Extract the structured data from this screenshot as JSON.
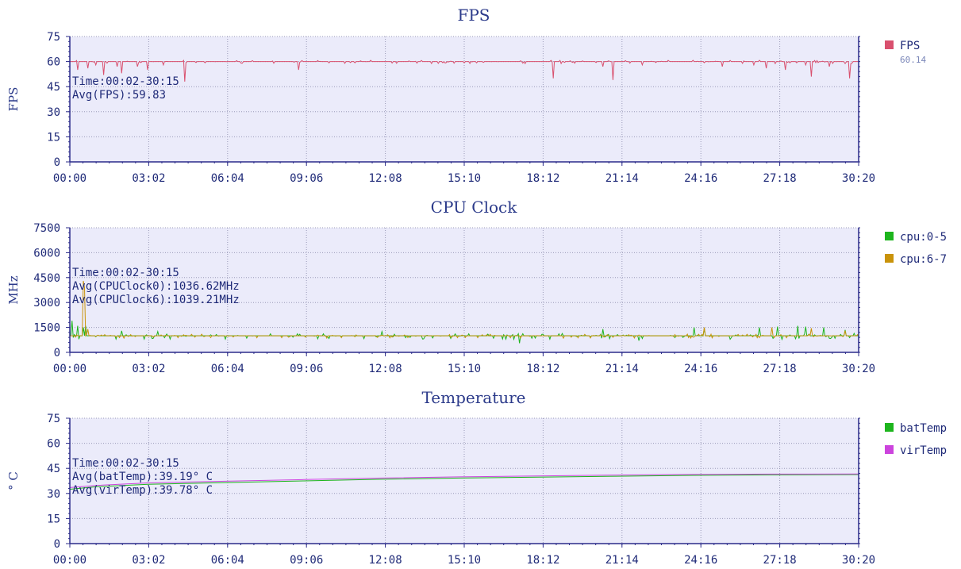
{
  "colors": {
    "plot_bg": "#ebebfa",
    "axis": "#2b2b8a",
    "grid": "#9a9ab8",
    "text": "#1f2a78",
    "title": "#2b3a8a"
  },
  "x_ticks": [
    "00:00",
    "03:02",
    "06:04",
    "09:06",
    "12:08",
    "15:10",
    "18:12",
    "21:14",
    "24:16",
    "27:18",
    "30:20"
  ],
  "chart_data": [
    {
      "type": "line",
      "title": "FPS",
      "ylabel": "FPS",
      "xlabel": "",
      "xlim": [
        0,
        30.333
      ],
      "ylim": [
        0,
        75
      ],
      "yticks": [
        0,
        15,
        30,
        45,
        60,
        75
      ],
      "grid": true,
      "legend_position": "right",
      "annotations": [
        "Time:00:02-30:15",
        "Avg(FPS):59.83"
      ],
      "series": [
        {
          "name": "FPS",
          "legend_value": "60.14",
          "color": "#d9506e",
          "baseline": 60,
          "noise": 1.0,
          "dips": [
            [
              0.3,
              55
            ],
            [
              0.7,
              56
            ],
            [
              1.0,
              58
            ],
            [
              1.3,
              52
            ],
            [
              1.8,
              57
            ],
            [
              2.0,
              53
            ],
            [
              2.6,
              57
            ],
            [
              3.0,
              55
            ],
            [
              3.6,
              58
            ],
            [
              4.4,
              48
            ],
            [
              8.8,
              55
            ],
            [
              18.6,
              50
            ],
            [
              20.5,
              57
            ],
            [
              20.9,
              49
            ],
            [
              22.0,
              58
            ],
            [
              25.1,
              57
            ],
            [
              26.3,
              58
            ],
            [
              26.8,
              56
            ],
            [
              27.5,
              55
            ],
            [
              28.3,
              58
            ],
            [
              28.5,
              51
            ],
            [
              29.2,
              57
            ],
            [
              30.0,
              50
            ]
          ]
        }
      ]
    },
    {
      "type": "line",
      "title": "CPU Clock",
      "ylabel": "MHz",
      "xlabel": "",
      "xlim": [
        0,
        30.333
      ],
      "ylim": [
        0,
        7500
      ],
      "yticks": [
        0,
        1500,
        3000,
        4500,
        6000,
        7500
      ],
      "grid": true,
      "legend_position": "right",
      "annotations": [
        "Time:00:02-30:15",
        "Avg(CPUClock0):1036.62MHz",
        "Avg(CPUClock6):1039.21MHz"
      ],
      "series": [
        {
          "name": "cpu:0-5",
          "color": "#1db51d",
          "baseline": 1000,
          "noise": 180,
          "dips": [
            [
              0.1,
              1900
            ],
            [
              0.3,
              1600
            ],
            [
              0.5,
              1500
            ],
            [
              0.6,
              1600
            ],
            [
              2.0,
              1300
            ],
            [
              3.4,
              1250
            ],
            [
              12.0,
              1250
            ],
            [
              20.5,
              1400
            ],
            [
              24.0,
              1500
            ],
            [
              24.4,
              1450
            ],
            [
              26.5,
              1500
            ],
            [
              27.2,
              1550
            ],
            [
              28.0,
              1600
            ],
            [
              28.3,
              1550
            ],
            [
              29.0,
              1500
            ],
            [
              29.8,
              1350
            ],
            [
              17.3,
              550
            ],
            [
              21.9,
              700
            ]
          ]
        },
        {
          "name": "cpu:6-7",
          "color": "#c9930a",
          "baseline": 1000,
          "noise": 120,
          "dips": [
            [
              0.5,
              4300
            ],
            [
              0.55,
              3900
            ],
            [
              0.7,
              1400
            ],
            [
              24.4,
              1500
            ],
            [
              27.0,
              1500
            ],
            [
              28.5,
              1450
            ],
            [
              29.8,
              1300
            ]
          ]
        }
      ]
    },
    {
      "type": "line",
      "title": "Temperature",
      "ylabel": "° C",
      "xlabel": "",
      "xlim": [
        0,
        30.333
      ],
      "ylim": [
        0,
        75
      ],
      "yticks": [
        0,
        15,
        30,
        45,
        60,
        75
      ],
      "grid": true,
      "legend_position": "right",
      "annotations": [
        "Time:00:02-30:15",
        "Avg(batTemp):39.19° C",
        "Avg(virTemp):39.78° C"
      ],
      "series": [
        {
          "name": "batTemp",
          "color": "#1db51d",
          "x": [
            0,
            1,
            3,
            6,
            9,
            12,
            15,
            18,
            21,
            24,
            27,
            30.33
          ],
          "y": [
            32.5,
            34,
            35.5,
            36.5,
            37.5,
            38.5,
            39.2,
            39.8,
            40.3,
            40.8,
            41.1,
            41.3
          ]
        },
        {
          "name": "virTemp",
          "color": "#cc44dd",
          "x": [
            0,
            1,
            3,
            6,
            9,
            12,
            15,
            18,
            21,
            24,
            27,
            30.33
          ],
          "y": [
            33.5,
            34.8,
            36.3,
            37.3,
            38.3,
            39.2,
            39.9,
            40.5,
            41.0,
            41.4,
            41.6,
            41.7
          ]
        }
      ]
    }
  ]
}
